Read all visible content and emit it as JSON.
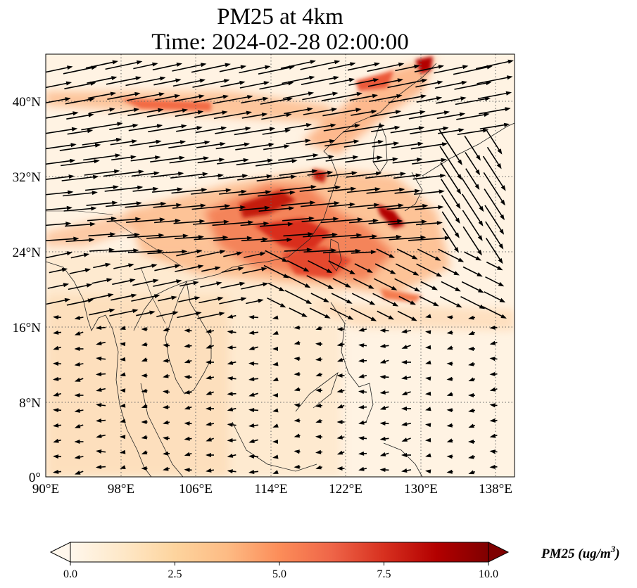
{
  "title_line1": "PM25 at 4km",
  "title_line2": "Time: 2024-02-28 02:00:00",
  "map": {
    "extent": {
      "lon": [
        90,
        140
      ],
      "lat": [
        0,
        45
      ]
    },
    "lat_ticks": [
      "0°",
      "8°N",
      "16°N",
      "24°N",
      "32°N",
      "40°N"
    ],
    "lon_ticks": [
      "90°E",
      "98°E",
      "106°E",
      "114°E",
      "122°E",
      "130°E",
      "138°E"
    ],
    "gridlines": true
  },
  "colorbar": {
    "label": "PM25 (ug/m",
    "label_sup": "3",
    "label_end": ")",
    "ticks": [
      "0.0",
      "2.5",
      "5.0",
      "7.5",
      "10.0"
    ],
    "range": [
      0,
      10
    ],
    "colormap": "OrRd",
    "extend": "both",
    "colors": [
      "#fff7ec",
      "#fee8c8",
      "#fdd49e",
      "#fdbb84",
      "#fc8d59",
      "#ef6548",
      "#d7301f",
      "#b30000",
      "#7f0000"
    ]
  }
}
